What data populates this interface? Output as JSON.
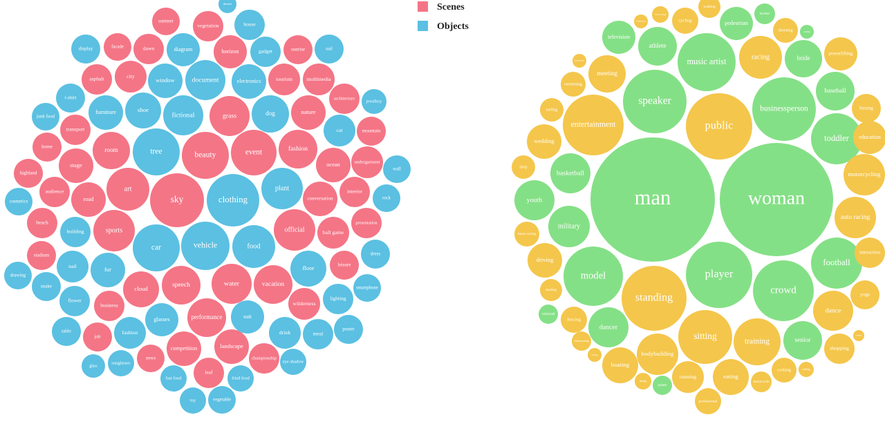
{
  "chart_data": [
    {
      "type": "bubble",
      "legend": "top-right",
      "series": [
        {
          "name": "Scenes",
          "color": "#f47586",
          "labels": [
            "summer",
            "vegetation",
            "facade",
            "dawn",
            "horizon",
            "sunrise",
            "asphalt",
            "city",
            "tourism",
            "multimedia",
            "architecture",
            "grass",
            "nature",
            "mountain",
            "transport",
            "home",
            "room",
            "beauty",
            "event",
            "fashion",
            "ocean",
            "undergarment",
            "stage",
            "highland",
            "art",
            "audience",
            "sky",
            "interior",
            "conversation",
            "road",
            "beach",
            "sports",
            "official",
            "ball game",
            "presentation",
            "stadium",
            "leisure",
            "cloud",
            "speech",
            "water",
            "vacation",
            "business",
            "wilderness",
            "performance",
            "job",
            "competition",
            "landscape",
            "news",
            "championship",
            "leaf"
          ],
          "values": [
            20,
            22,
            20,
            22,
            24,
            21,
            22,
            23,
            23,
            23,
            22,
            29,
            25,
            21,
            22,
            21,
            27,
            34,
            33,
            28,
            25,
            23,
            25,
            21,
            31,
            22,
            39,
            22,
            25,
            25,
            22,
            30,
            30,
            23,
            22,
            21,
            21,
            26,
            28,
            29,
            28,
            22,
            23,
            28,
            21,
            25,
            25,
            20,
            22,
            22
          ]
        },
        {
          "name": "Objects",
          "color": "#5bc0e2",
          "labels": [
            "dessert",
            "house",
            "display",
            "diagram",
            "gadget",
            "sail",
            "window",
            "document",
            "electronics",
            "t-shirt",
            "jewellery",
            "junk food",
            "furniture",
            "shoe",
            "fictional",
            "dog",
            "cat",
            "tree",
            "wall",
            "clothing",
            "plant",
            "rock",
            "cosmetics",
            "building",
            "car",
            "vehicle",
            "food",
            "dress",
            "nail",
            "fur",
            "floor",
            "drawing",
            "smartphone",
            "snake",
            "flower",
            "lighting",
            "glasses",
            "suit",
            "table",
            "fashion",
            "drink",
            "meal",
            "poster",
            "eye shadow",
            "glass",
            "sunglasses",
            "fast food",
            "fried food",
            "toy",
            "vegetable"
          ],
          "values": [
            13,
            22,
            21,
            24,
            22,
            21,
            25,
            29,
            25,
            21,
            18,
            20,
            25,
            26,
            29,
            27,
            23,
            34,
            20,
            38,
            30,
            20,
            20,
            22,
            34,
            35,
            31,
            21,
            23,
            25,
            26,
            20,
            20,
            21,
            22,
            22,
            24,
            24,
            21,
            23,
            23,
            22,
            21,
            19,
            17,
            19,
            19,
            19,
            19,
            20
          ]
        }
      ]
    },
    {
      "type": "bubble",
      "series": [
        {
          "color": "#84e086",
          "labels": [
            "teacher",
            "pedestrian",
            "smiling",
            "television",
            "athlete",
            "music artist",
            "bride",
            "speaker",
            "businessperson",
            "baseball",
            "toddler",
            "basketball",
            "man",
            "woman",
            "youth",
            "military",
            "model",
            "player",
            "football",
            "crowd",
            "volleyball",
            "dancer",
            "senior",
            "protest"
          ],
          "values": [
            15,
            24,
            10,
            24,
            28,
            42,
            27,
            46,
            46,
            28,
            37,
            29,
            90,
            82,
            29,
            30,
            43,
            48,
            37,
            44,
            14,
            29,
            28,
            14
          ]
        },
        {
          "color": "#f4c64b",
          "labels": [
            "walking",
            "food tasting",
            "cycling",
            "celebration",
            "shooting",
            "racing",
            "powerlifting",
            "hairdressing",
            "meeting",
            "swimming",
            "public",
            "boxing",
            "surfing",
            "entertainment",
            "education",
            "wedding",
            "shop",
            "motorcycling",
            "auto racing",
            "horse racing",
            "interaction",
            "standing",
            "driving",
            "skating",
            "yoga",
            "dance",
            "fencing",
            "sitting",
            "training",
            "bodybuilding",
            "shopping",
            "bowling",
            "boating",
            "running",
            "eating",
            "cooking",
            "chilling",
            "skateboarding",
            "rafting",
            "dating",
            "motorcycle",
            "professional"
          ],
          "values": [
            16,
            12,
            19,
            10,
            18,
            31,
            24,
            10,
            27,
            18,
            48,
            21,
            17,
            44,
            24,
            25,
            17,
            30,
            30,
            18,
            22,
            47,
            25,
            16,
            21,
            29,
            19,
            39,
            34,
            30,
            22,
            8,
            26,
            23,
            26,
            18,
            11,
            14,
            10,
            12,
            15,
            19
          ]
        }
      ]
    }
  ]
}
